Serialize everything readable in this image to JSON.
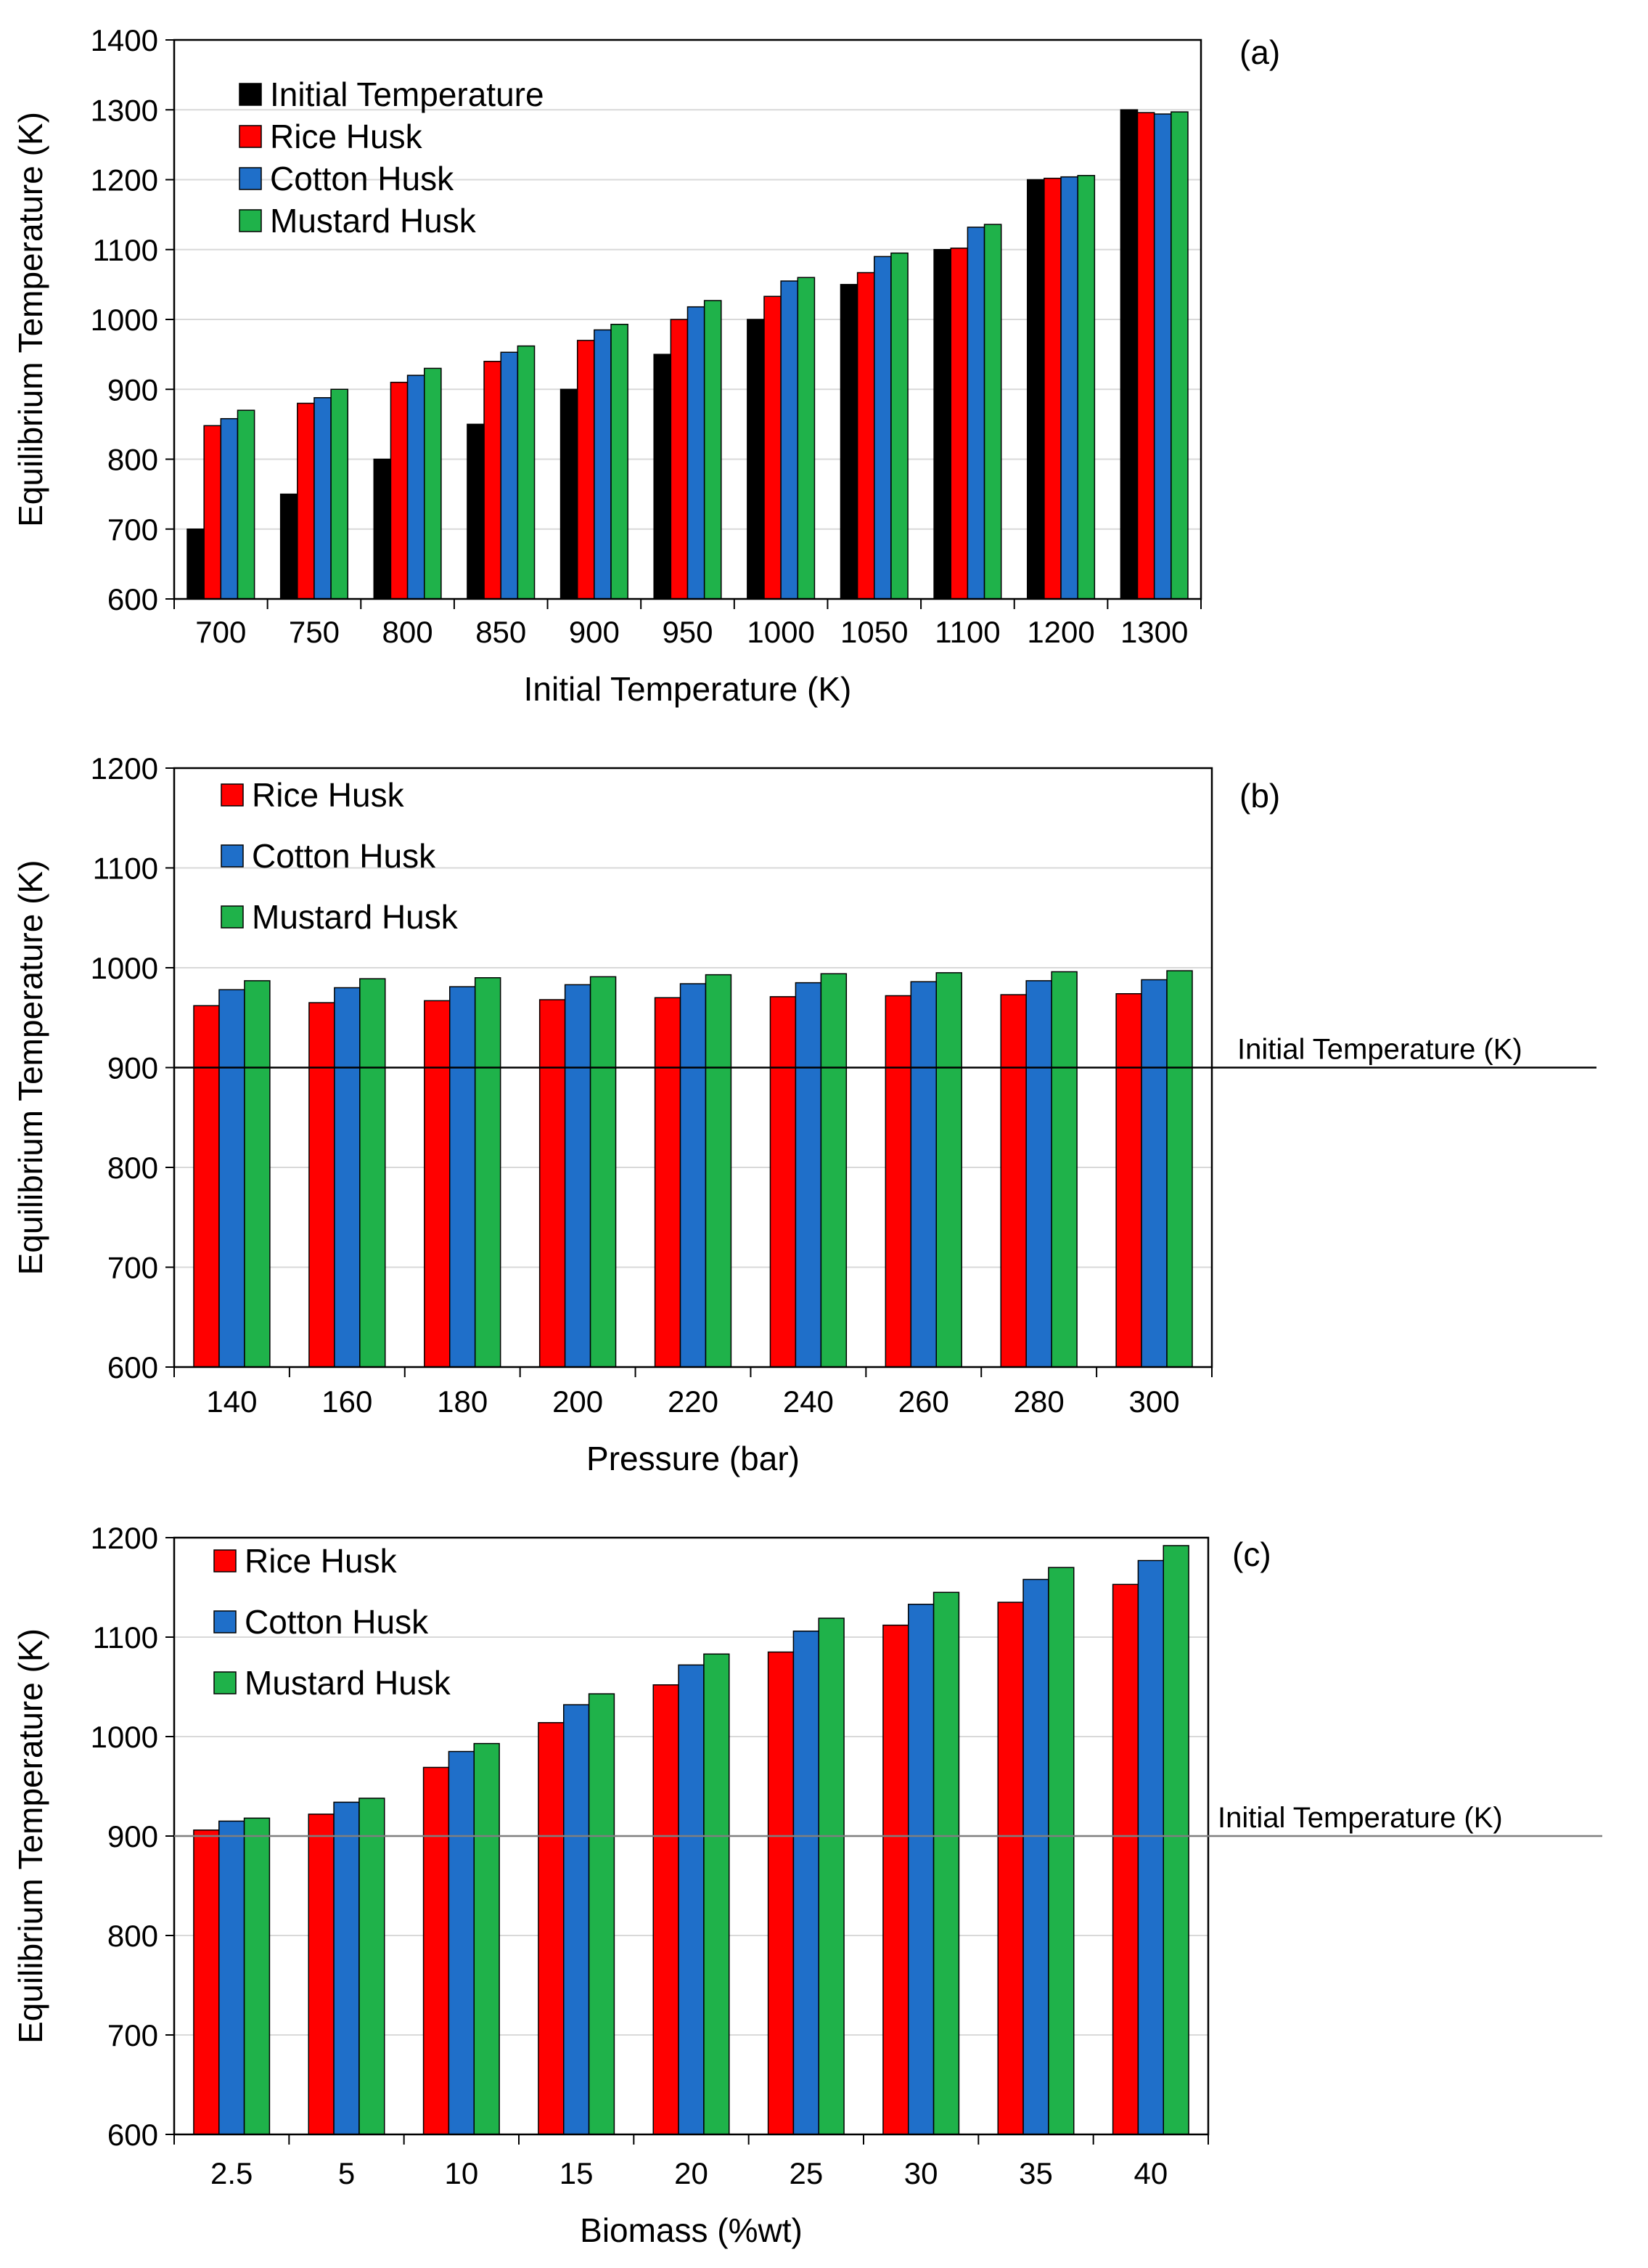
{
  "colors": {
    "initial": "#000000",
    "rice": "#ff0000",
    "cotton": "#1f6fc9",
    "mustard": "#1fb24a",
    "grid": "#d9d9d9",
    "bar_edge": "#000000"
  },
  "chart_data": [
    {
      "type": "bar",
      "panel_label": "(a)",
      "xlabel": "Initial Temperature (K)",
      "ylabel": "Equilibrium Temperature (K)",
      "ylim": [
        600,
        1400
      ],
      "yticks": [
        600,
        700,
        800,
        900,
        1000,
        1100,
        1200,
        1300,
        1400
      ],
      "categories": [
        "700",
        "750",
        "800",
        "850",
        "900",
        "950",
        "1000",
        "1050",
        "1100",
        "1200",
        "1300"
      ],
      "legend_position": "top-left",
      "series": [
        {
          "name": "Initial Temperature",
          "color_key": "initial",
          "values": [
            700,
            750,
            800,
            850,
            900,
            950,
            1000,
            1050,
            1100,
            1200,
            1300
          ]
        },
        {
          "name": "Rice Husk",
          "color_key": "rice",
          "values": [
            848,
            880,
            910,
            940,
            970,
            1000,
            1033,
            1067,
            1102,
            1202,
            1296
          ]
        },
        {
          "name": "Cotton Husk",
          "color_key": "cotton",
          "values": [
            858,
            888,
            920,
            953,
            985,
            1018,
            1055,
            1090,
            1132,
            1204,
            1294
          ]
        },
        {
          "name": "Mustard Husk",
          "color_key": "mustard",
          "values": [
            870,
            900,
            930,
            962,
            993,
            1027,
            1060,
            1095,
            1136,
            1206,
            1297
          ]
        }
      ]
    },
    {
      "type": "bar",
      "panel_label": "(b)",
      "xlabel": "Pressure (bar)",
      "ylabel": "Equilibrium Temperature (K)",
      "ylim": [
        600,
        1200
      ],
      "yticks": [
        600,
        700,
        800,
        900,
        1000,
        1100,
        1200
      ],
      "categories": [
        "140",
        "160",
        "180",
        "200",
        "220",
        "240",
        "260",
        "280",
        "300"
      ],
      "legend_position": "top-left",
      "reference_line": {
        "label": "Initial Temperature (K)",
        "value": 900
      },
      "series": [
        {
          "name": "Rice Husk",
          "color_key": "rice",
          "values": [
            962,
            965,
            967,
            968,
            970,
            971,
            972,
            973,
            974
          ]
        },
        {
          "name": "Cotton Husk",
          "color_key": "cotton",
          "values": [
            978,
            980,
            981,
            983,
            984,
            985,
            986,
            987,
            988
          ]
        },
        {
          "name": "Mustard Husk",
          "color_key": "mustard",
          "values": [
            987,
            989,
            990,
            991,
            993,
            994,
            995,
            996,
            997
          ]
        }
      ]
    },
    {
      "type": "bar",
      "panel_label": "(c)",
      "xlabel": "Biomass (%wt)",
      "ylabel": "Equilibrium Temperature (K)",
      "ylim": [
        600,
        1200
      ],
      "yticks": [
        600,
        700,
        800,
        900,
        1000,
        1100,
        1200
      ],
      "categories": [
        "2.5",
        "5",
        "10",
        "15",
        "20",
        "25",
        "30",
        "35",
        "40"
      ],
      "legend_position": "top-left",
      "reference_line": {
        "label": "Initial Temperature (K)",
        "value": 900
      },
      "series": [
        {
          "name": "Rice Husk",
          "color_key": "rice",
          "values": [
            906,
            922,
            969,
            1014,
            1052,
            1085,
            1112,
            1135,
            1153
          ]
        },
        {
          "name": "Cotton Husk",
          "color_key": "cotton",
          "values": [
            915,
            934,
            985,
            1032,
            1072,
            1106,
            1133,
            1158,
            1177
          ]
        },
        {
          "name": "Mustard Husk",
          "color_key": "mustard",
          "values": [
            918,
            938,
            993,
            1043,
            1083,
            1119,
            1145,
            1170,
            1192
          ]
        }
      ]
    }
  ]
}
